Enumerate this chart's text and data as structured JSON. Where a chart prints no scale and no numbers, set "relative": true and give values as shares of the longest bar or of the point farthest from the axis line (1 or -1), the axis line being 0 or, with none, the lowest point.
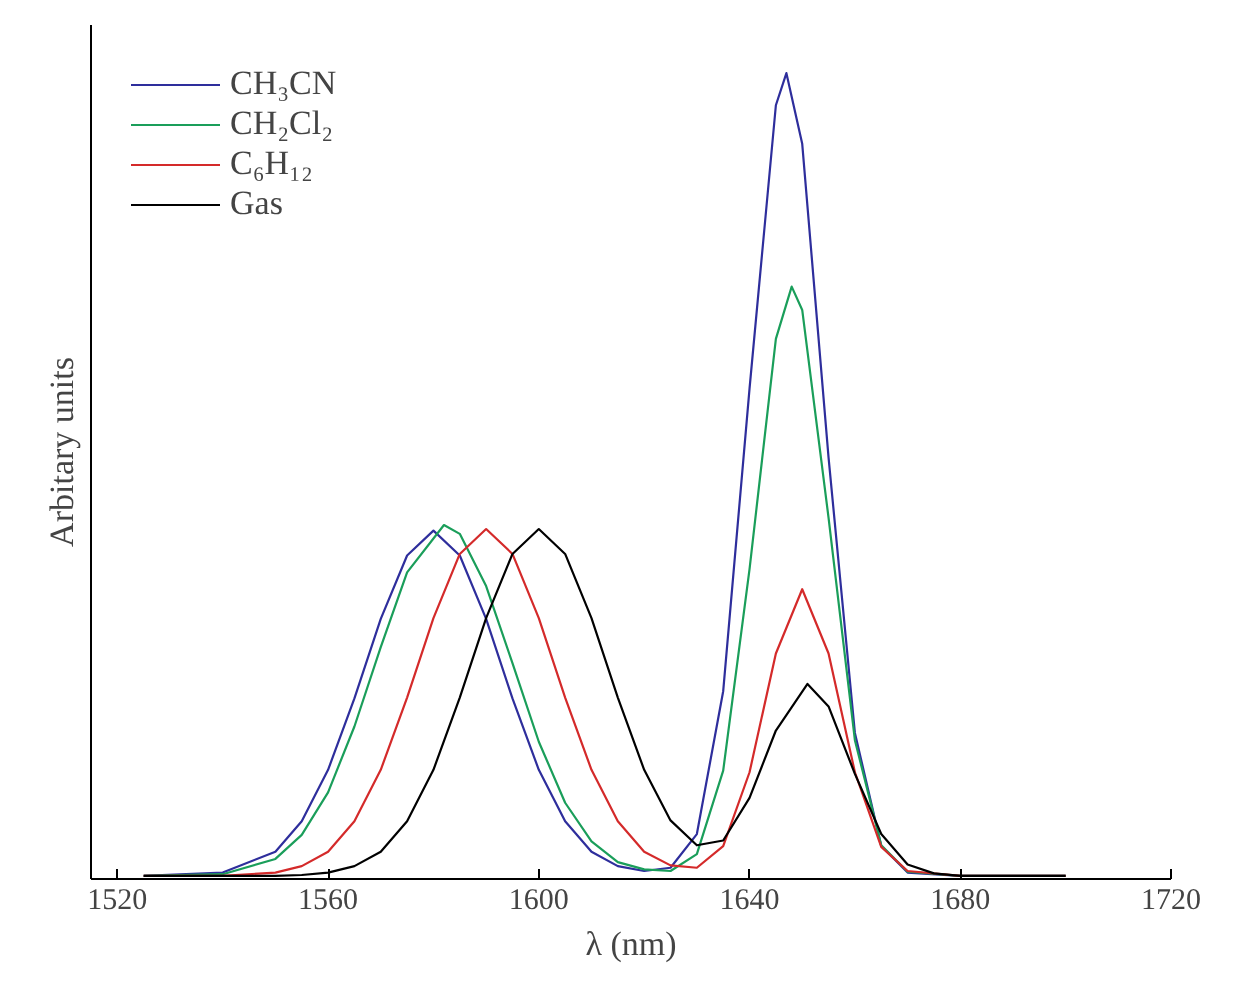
{
  "chart_data": {
    "type": "line",
    "relative": true,
    "xlabel": "λ (nm)",
    "ylabel": "Arbitary units",
    "xlim": [
      1515,
      1720
    ],
    "xticks": [
      1520,
      1560,
      1600,
      1640,
      1680,
      1720
    ],
    "grid": false,
    "legend": "top left",
    "marker": "none",
    "line_style": "solid",
    "series": [
      {
        "name": "CH₃CN",
        "color": "#2e2e9c",
        "x": [
          1525,
          1540,
          1550,
          1555,
          1560,
          1565,
          1570,
          1575,
          1580,
          1585,
          1590,
          1595,
          1600,
          1605,
          1610,
          1615,
          1620,
          1625,
          1630,
          1635,
          1640,
          1645,
          1647,
          1650,
          1655,
          1660,
          1665,
          1670,
          1680,
          1700
        ],
        "values": [
          0,
          0.004,
          0.03,
          0.068,
          0.132,
          0.221,
          0.32,
          0.399,
          0.43,
          0.399,
          0.32,
          0.221,
          0.132,
          0.068,
          0.03,
          0.012,
          0.006,
          0.01,
          0.052,
          0.23,
          0.607,
          0.96,
          1.0,
          0.912,
          0.521,
          0.178,
          0.037,
          0.004,
          0,
          0
        ]
      },
      {
        "name": "CH₂Cl₂",
        "color": "#1a9e5a",
        "x": [
          1525,
          1540,
          1550,
          1555,
          1560,
          1565,
          1570,
          1575,
          1582,
          1585,
          1590,
          1595,
          1600,
          1605,
          1610,
          1615,
          1620,
          1625,
          1630,
          1635,
          1640,
          1645,
          1648,
          1650,
          1655,
          1660,
          1665,
          1670,
          1680,
          1700
        ],
        "values": [
          0,
          0.002,
          0.021,
          0.051,
          0.104,
          0.186,
          0.285,
          0.378,
          0.437,
          0.426,
          0.361,
          0.265,
          0.167,
          0.091,
          0.043,
          0.017,
          0.008,
          0.006,
          0.027,
          0.131,
          0.382,
          0.669,
          0.734,
          0.705,
          0.446,
          0.169,
          0.038,
          0.005,
          0,
          0
        ]
      },
      {
        "name": "C₆H₁₂",
        "color": "#d42a2a",
        "x": [
          1525,
          1540,
          1550,
          1555,
          1560,
          1565,
          1570,
          1575,
          1580,
          1585,
          1590,
          1595,
          1600,
          1605,
          1610,
          1615,
          1620,
          1625,
          1630,
          1635,
          1640,
          1645,
          1650,
          1655,
          1660,
          1665,
          1670,
          1680,
          1700
        ],
        "values": [
          0,
          0,
          0.004,
          0.012,
          0.03,
          0.068,
          0.132,
          0.222,
          0.321,
          0.401,
          0.432,
          0.401,
          0.321,
          0.222,
          0.132,
          0.068,
          0.03,
          0.013,
          0.01,
          0.037,
          0.129,
          0.277,
          0.357,
          0.277,
          0.129,
          0.036,
          0.006,
          0,
          0
        ]
      },
      {
        "name": "Gas",
        "color": "#000000",
        "x": [
          1525,
          1550,
          1555,
          1560,
          1565,
          1570,
          1575,
          1580,
          1585,
          1590,
          1595,
          1600,
          1605,
          1610,
          1615,
          1620,
          1625,
          1630,
          1635,
          1640,
          1645,
          1651,
          1655,
          1660,
          1665,
          1670,
          1675,
          1680,
          1700
        ],
        "values": [
          0,
          0,
          0.001,
          0.004,
          0.012,
          0.03,
          0.068,
          0.132,
          0.222,
          0.321,
          0.401,
          0.432,
          0.401,
          0.321,
          0.222,
          0.132,
          0.069,
          0.038,
          0.044,
          0.097,
          0.181,
          0.239,
          0.211,
          0.127,
          0.052,
          0.014,
          0.003,
          0,
          0
        ]
      }
    ]
  }
}
